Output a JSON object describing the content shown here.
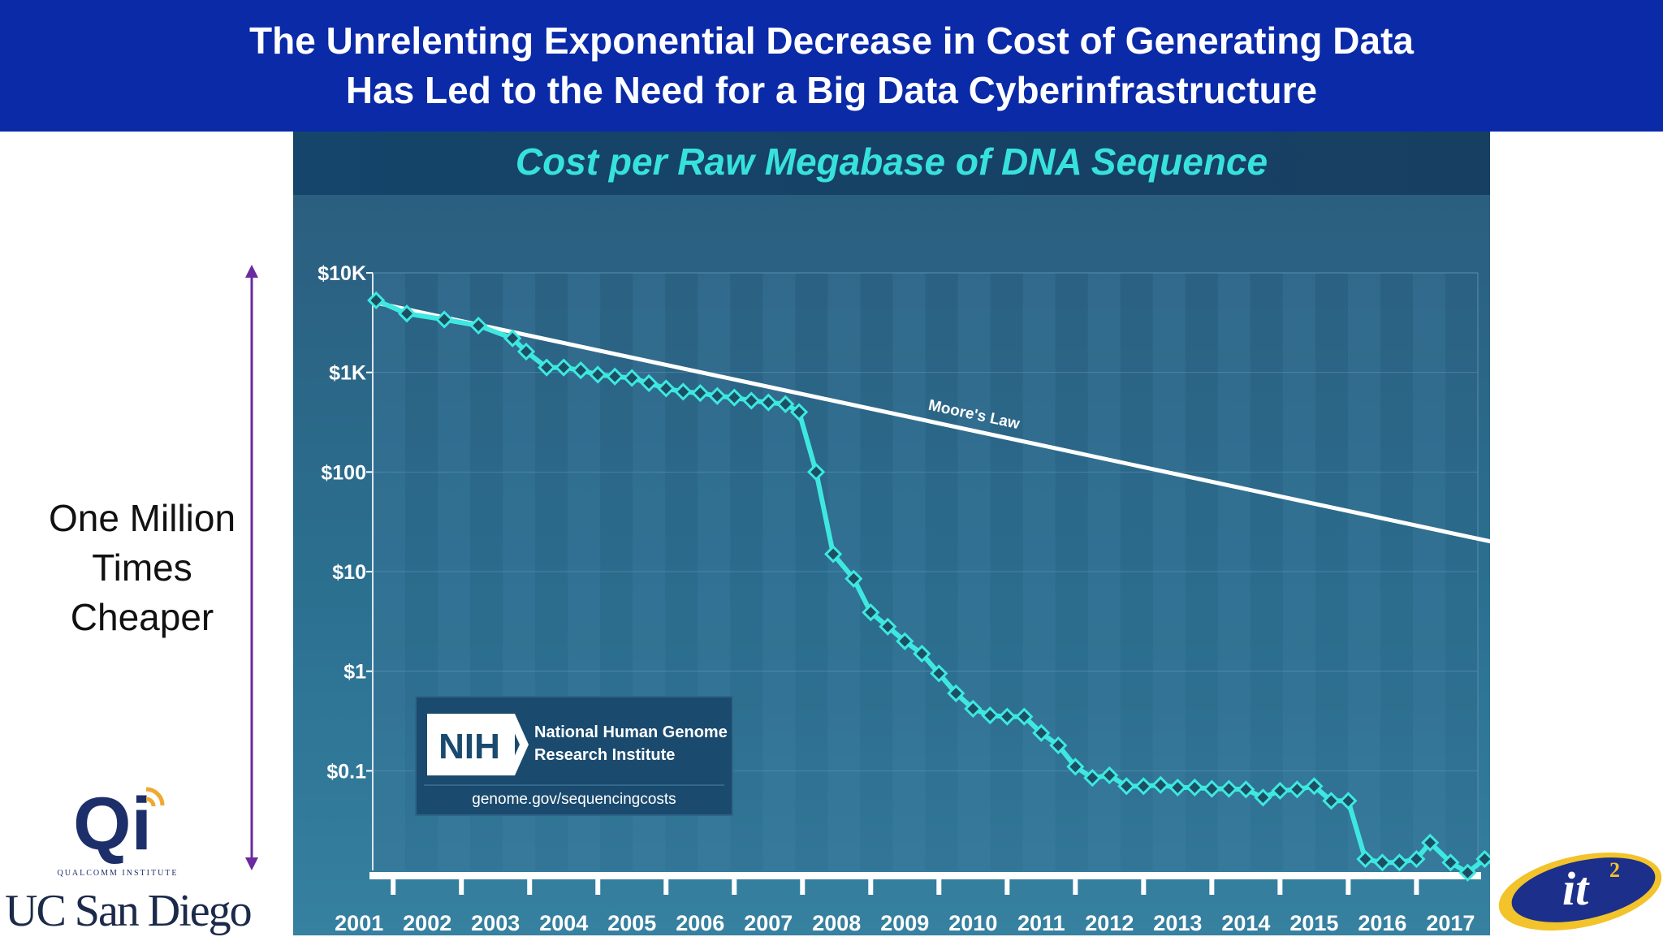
{
  "slide": {
    "title_line1": "The Unrelenting Exponential Decrease in Cost of Generating Data",
    "title_line2": "Has Led to the Need for a Big Data Cyberinfrastructure"
  },
  "annotation": {
    "line1": "One Million",
    "line2": "Times",
    "line3": "Cheaper"
  },
  "logos": {
    "qi_text": "Qi",
    "qi_subtitle": "QUALCOMM INSTITUTE",
    "ucsd_text": "UC San Diego",
    "it2_text": "it",
    "it2_sup": "2"
  },
  "colors": {
    "banner": "#0a2aa8",
    "panel_bg": "#2b6488",
    "title_text": "#38e2dc",
    "series_line": "#3ee8e0",
    "moore_line": "#ffffff",
    "arrow": "#6a2aa0"
  },
  "chart_data": {
    "type": "line",
    "title": "Cost per Raw Megabase of DNA Sequence",
    "y_scale": "log",
    "ylim": [
      0.01,
      10000
    ],
    "y_ticks": [
      {
        "value": 10000,
        "label": "$10K"
      },
      {
        "value": 1000,
        "label": "$1K"
      },
      {
        "value": 100,
        "label": "$100"
      },
      {
        "value": 10,
        "label": "$10"
      },
      {
        "value": 1,
        "label": "$1"
      },
      {
        "value": 0.1,
        "label": "$0.1"
      }
    ],
    "x_ticks": [
      "2001",
      "2002",
      "2003",
      "2004",
      "2005",
      "2006",
      "2007",
      "2008",
      "2009",
      "2010",
      "2011",
      "2012",
      "2013",
      "2014",
      "2015",
      "2016",
      "2017"
    ],
    "xlim": [
      2001.7,
      2017.9
    ],
    "series": [
      {
        "name": "",
        "points": [
          [
            2001.75,
            5292
          ],
          [
            2002.2,
            3900
          ],
          [
            2002.75,
            3400
          ],
          [
            2003.25,
            2950
          ],
          [
            2003.75,
            2200
          ],
          [
            2003.95,
            1620
          ],
          [
            2004.25,
            1120
          ],
          [
            2004.5,
            1120
          ],
          [
            2004.75,
            1050
          ],
          [
            2005.0,
            950
          ],
          [
            2005.25,
            910
          ],
          [
            2005.5,
            880
          ],
          [
            2005.75,
            780
          ],
          [
            2006.0,
            690
          ],
          [
            2006.25,
            640
          ],
          [
            2006.5,
            620
          ],
          [
            2006.75,
            580
          ],
          [
            2007.0,
            560
          ],
          [
            2007.25,
            520
          ],
          [
            2007.5,
            500
          ],
          [
            2007.75,
            480
          ],
          [
            2007.95,
            400
          ],
          [
            2008.2,
            100
          ],
          [
            2008.45,
            15.0
          ],
          [
            2008.75,
            8.5
          ],
          [
            2009.0,
            3.9
          ],
          [
            2009.25,
            2.8
          ],
          [
            2009.5,
            2.0
          ],
          [
            2009.75,
            1.5
          ],
          [
            2010.0,
            0.95
          ],
          [
            2010.25,
            0.6
          ],
          [
            2010.5,
            0.42
          ],
          [
            2010.75,
            0.36
          ],
          [
            2011.0,
            0.35
          ],
          [
            2011.25,
            0.35
          ],
          [
            2011.5,
            0.24
          ],
          [
            2011.75,
            0.18
          ],
          [
            2012.0,
            0.11
          ],
          [
            2012.25,
            0.085
          ],
          [
            2012.5,
            0.09
          ],
          [
            2012.75,
            0.07
          ],
          [
            2013.0,
            0.07
          ],
          [
            2013.25,
            0.072
          ],
          [
            2013.5,
            0.068
          ],
          [
            2013.75,
            0.068
          ],
          [
            2014.0,
            0.066
          ],
          [
            2014.25,
            0.066
          ],
          [
            2014.5,
            0.065
          ],
          [
            2014.75,
            0.054
          ],
          [
            2015.0,
            0.063
          ],
          [
            2015.25,
            0.065
          ],
          [
            2015.5,
            0.07
          ],
          [
            2015.75,
            0.05
          ],
          [
            2016.0,
            0.05
          ],
          [
            2016.25,
            0.013
          ],
          [
            2016.5,
            0.012
          ],
          [
            2016.75,
            0.012
          ],
          [
            2017.0,
            0.013
          ],
          [
            2017.2,
            0.019
          ],
          [
            2017.5,
            0.012
          ],
          [
            2017.75,
            0.0095
          ],
          [
            2018.0,
            0.013
          ],
          [
            2018.25,
            0.011
          ]
        ]
      }
    ],
    "reference_line": {
      "label": "Moore's Law",
      "start": [
        2001.75,
        5000
      ],
      "end": [
        2018.25,
        19
      ]
    },
    "source_box": {
      "logo_text": "NIH",
      "org_line1": "National Human Genome",
      "org_line2": "Research Institute",
      "url": "genome.gov/sequencingcosts"
    },
    "grid": true,
    "legend": "none"
  }
}
